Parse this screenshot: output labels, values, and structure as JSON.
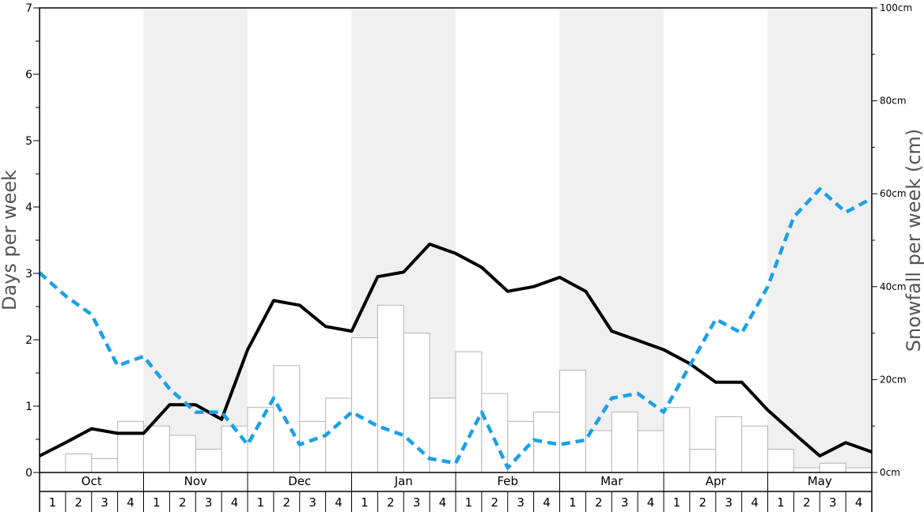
{
  "chart_data": {
    "type": "bar",
    "left_axis": {
      "label": "Days per week",
      "ylim": [
        0,
        7
      ],
      "ticks": [
        "0",
        "1",
        "2",
        "3",
        "4",
        "5",
        "6",
        "7"
      ]
    },
    "right_axis": {
      "label": "Snowfall per week (cm)",
      "ylim": [
        0,
        100
      ],
      "ticks": [
        "0cm",
        "20cm",
        "40cm",
        "60cm",
        "80cm",
        "100cm"
      ]
    },
    "months": [
      "Oct",
      "Nov",
      "Dec",
      "Jan",
      "Feb",
      "Mar",
      "Apr",
      "May"
    ],
    "weeks": [
      "1",
      "2",
      "3",
      "4"
    ],
    "shaded_months": [
      "Nov",
      "Jan",
      "Mar",
      "May"
    ],
    "grid": false,
    "series": [
      {
        "kind": "bar",
        "axis": "right",
        "color": "#ffffff",
        "edge_color": "#b4b4b4",
        "values": [
          0,
          4,
          3,
          11,
          10,
          8,
          5,
          10,
          14,
          23,
          11,
          16,
          29,
          36,
          30,
          16,
          26,
          17,
          11,
          13,
          22,
          9,
          13,
          9,
          14,
          5,
          12,
          10,
          5,
          1,
          2,
          1
        ]
      },
      {
        "kind": "line",
        "axis": "left",
        "style": "solid",
        "color": "#000000",
        "values": [
          0.25,
          0.45,
          0.66,
          0.59,
          0.59,
          1.02,
          1.02,
          0.8,
          1.85,
          2.59,
          2.52,
          2.2,
          2.13,
          2.95,
          3.02,
          3.44,
          3.3,
          3.09,
          2.73,
          2.8,
          2.94,
          2.73,
          2.13,
          1.99,
          1.85,
          1.64,
          1.36,
          1.36,
          0.94,
          0.59,
          0.25,
          0.45,
          0.31
        ]
      },
      {
        "kind": "line",
        "axis": "right",
        "style": "dashed",
        "color": "#1aa0e8",
        "values": [
          43,
          38,
          34,
          23,
          25,
          18,
          13,
          13,
          6,
          16,
          6,
          8,
          13,
          10,
          8,
          3,
          2,
          13,
          1,
          7,
          6,
          7,
          16,
          17,
          13,
          23,
          33,
          30,
          40,
          55,
          61,
          56,
          59
        ]
      }
    ]
  }
}
